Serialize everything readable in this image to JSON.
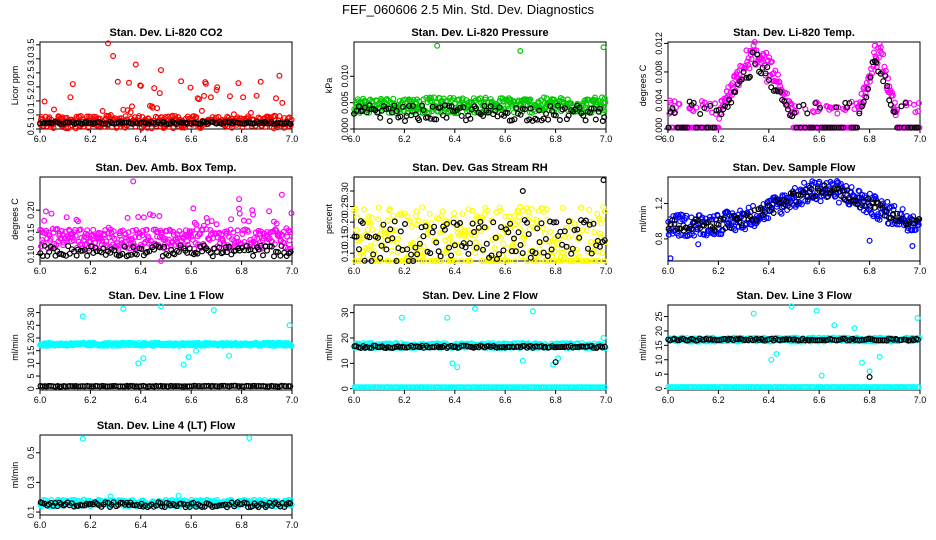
{
  "title": "FEF_060606  2.5 Min. Std. Dev. Diagnostics",
  "colors": {
    "black": "#000000",
    "red": "#ff0000",
    "green": "#00c800",
    "magenta": "#ff00ff",
    "yellow": "#ffff00",
    "blue": "#0000ff",
    "cyan": "#00ffff"
  },
  "chart_data": [
    {
      "type": "scatter",
      "title": "Stan. Dev. Li-820 CO2",
      "xlabel": "",
      "ylabel": "Licor ppm",
      "xlim": [
        6.0,
        7.0
      ],
      "ylim": [
        0.5,
        3.6
      ],
      "xticks": [
        "6.0",
        "6.2",
        "6.4",
        "6.6",
        "6.8",
        "7.0"
      ],
      "yticks": [
        "0.5",
        "1.0",
        "1.5",
        "2.0",
        "2.5",
        "3.0",
        "3.5"
      ],
      "series": [
        {
          "name": "main",
          "color": "red",
          "base": 0.75,
          "spread": 0.45,
          "extreme": 2.3,
          "fraction_extreme": 0.18,
          "outliers": [
            [
              6.27,
              3.55
            ],
            [
              6.29,
              3.1
            ],
            [
              6.48,
              2.6
            ],
            [
              6.95,
              2.4
            ],
            [
              6.56,
              2.2
            ],
            [
              6.13,
              2.1
            ],
            [
              6.38,
              2.8
            ]
          ]
        },
        {
          "name": "reference",
          "color": "black",
          "base": 0.72,
          "spread": 0.08,
          "fraction_extreme": 0.0,
          "outliers": []
        }
      ]
    },
    {
      "type": "scatter",
      "title": "Stan. Dev. Li-820 Pressure",
      "xlabel": "",
      "ylabel": "kPa",
      "xlim": [
        6.0,
        7.0
      ],
      "ylim": [
        0.0,
        0.0165
      ],
      "xticks": [
        "6.0",
        "6.2",
        "6.4",
        "6.6",
        "6.8",
        "7.0"
      ],
      "yticks": [
        "0.000",
        "0.005",
        "0.010"
      ],
      "series": [
        {
          "name": "main",
          "color": "green",
          "base": 0.0045,
          "spread": 0.003,
          "fraction_extreme": 0.0,
          "outliers": [
            [
              6.33,
              0.0158
            ],
            [
              6.66,
              0.0148
            ],
            [
              6.99,
              0.0155
            ]
          ]
        },
        {
          "name": "reference",
          "color": "black",
          "base": 0.003,
          "spread": 0.003,
          "fraction_extreme": 0.0,
          "outliers": []
        }
      ]
    },
    {
      "type": "scatter",
      "title": "Stan. Dev. Li-820 Temp.",
      "xlabel": "",
      "ylabel": "degrees C",
      "xlim": [
        6.0,
        7.0
      ],
      "ylim": [
        0.0,
        0.0122
      ],
      "xticks": [
        "6.0",
        "6.2",
        "6.4",
        "6.6",
        "6.8",
        "7.0"
      ],
      "yticks": [
        "0.000",
        "0.004",
        "0.008",
        "0.012"
      ],
      "series": [
        {
          "name": "main",
          "color": "magenta",
          "base": 0.003,
          "spread": 0.002,
          "fraction_extreme": 0.0,
          "outliers": []
        },
        {
          "name": "reference",
          "color": "black",
          "base": 0.0035,
          "spread": 0.001,
          "fraction_extreme": 0.0,
          "outliers": []
        }
      ]
    },
    {
      "type": "scatter",
      "title": "Stan. Dev. Amb. Box Temp.",
      "xlabel": "",
      "ylabel": "degrees C",
      "xlim": [
        6.0,
        7.0
      ],
      "ylim": [
        0.085,
        0.275
      ],
      "xticks": [
        "6.0",
        "6.2",
        "6.4",
        "6.6",
        "6.8",
        "7.0"
      ],
      "yticks": [
        "0.10",
        "0.15",
        "0.20"
      ],
      "series": [
        {
          "name": "main",
          "color": "magenta",
          "base": 0.135,
          "spread": 0.045,
          "extreme": 0.21,
          "fraction_extreme": 0.12,
          "outliers": [
            [
              6.37,
              0.265
            ],
            [
              6.48,
              0.08
            ],
            [
              6.96,
              0.235
            ],
            [
              6.79,
              0.225
            ]
          ]
        },
        {
          "name": "reference",
          "color": "black",
          "base": 0.108,
          "spread": 0.025,
          "fraction_extreme": 0.0,
          "outliers": []
        }
      ]
    },
    {
      "type": "scatter",
      "title": "Stan. Dev. Gas Stream RH",
      "xlabel": "",
      "ylabel": "percent",
      "xlim": [
        6.0,
        7.0
      ],
      "ylim": [
        0.075,
        0.345
      ],
      "xticks": [
        "6.0",
        "6.2",
        "6.4",
        "6.6",
        "6.8",
        "7.0"
      ],
      "yticks": [
        "0.10",
        "0.15",
        "0.20",
        "0.25",
        "0.30"
      ],
      "series": [
        {
          "name": "main",
          "color": "yellow",
          "base": 0.14,
          "spread": 0.22,
          "fraction_extreme": 0.0,
          "outliers": []
        },
        {
          "name": "reference",
          "color": "black",
          "base": 0.14,
          "spread": 0.14,
          "fraction_extreme": 0.0,
          "outliers": [
            [
              6.99,
              0.335
            ],
            [
              6.67,
              0.3
            ]
          ]
        }
      ]
    },
    {
      "type": "scatter",
      "title": "Stan. Dev. Sample Flow",
      "xlabel": "",
      "ylabel": "ml/min",
      "xlim": [
        6.0,
        7.0
      ],
      "ylim": [
        0.55,
        1.5
      ],
      "xticks": [
        "6.0",
        "6.2",
        "6.4",
        "6.6",
        "6.8",
        "7.0"
      ],
      "yticks": [
        "0.8",
        "1.2"
      ],
      "series": [
        {
          "name": "main",
          "color": "blue",
          "base": 0.0,
          "spread": 0.18,
          "fraction_extreme": 0.0,
          "outliers": [
            [
              6.01,
              0.58
            ],
            [
              6.97,
              0.72
            ],
            [
              6.12,
              0.74
            ],
            [
              6.8,
              0.78
            ]
          ]
        },
        {
          "name": "reference",
          "color": "black",
          "base": 0.0,
          "spread": 0.1,
          "fraction_extreme": 0.0,
          "outliers": []
        }
      ]
    },
    {
      "type": "scatter",
      "title": "Stan. Dev. Line 1 Flow",
      "xlabel": "",
      "ylabel": "ml/min",
      "xlim": [
        6.0,
        7.0
      ],
      "ylim": [
        -0.5,
        33
      ],
      "xticks": [
        "6.0",
        "6.2",
        "6.4",
        "6.6",
        "6.8",
        "7.0"
      ],
      "yticks": [
        "0",
        "5",
        "10",
        "15",
        "20",
        "25",
        "30"
      ],
      "series": [
        {
          "name": "main",
          "color": "cyan",
          "base": 17.5,
          "spread": 1.2,
          "fraction_extreme": 0.0,
          "outliers": [
            [
              6.17,
              28.5
            ],
            [
              6.33,
              31.5
            ],
            [
              6.48,
              32.5
            ],
            [
              6.99,
              25.0
            ],
            [
              6.69,
              31.0
            ],
            [
              6.39,
              10.0
            ],
            [
              6.41,
              12.0
            ],
            [
              6.57,
              9.5
            ],
            [
              6.59,
              12.5
            ],
            [
              6.75,
              13.0
            ],
            [
              6.62,
              15.0
            ]
          ]
        },
        {
          "name": "reference",
          "color": "black",
          "base": 1.0,
          "spread": 0.3,
          "fraction_extreme": 0.0,
          "outliers": []
        }
      ]
    },
    {
      "type": "scatter",
      "title": "Stan. Dev. Line 2 Flow",
      "xlabel": "",
      "ylabel": "ml/min",
      "xlim": [
        6.0,
        7.0
      ],
      "ylim": [
        -0.5,
        33
      ],
      "xticks": [
        "6.0",
        "6.2",
        "6.4",
        "6.6",
        "6.8",
        "7.0"
      ],
      "yticks": [
        "0",
        "10",
        "20",
        "30"
      ],
      "series": [
        {
          "name": "main",
          "color": "cyan",
          "base": 17.0,
          "spread": 2.0,
          "fraction_extreme": 0.0,
          "outliers": [
            [
              6.19,
              28.0
            ],
            [
              6.37,
              28.0
            ],
            [
              6.48,
              31.5
            ],
            [
              6.99,
              20.0
            ],
            [
              6.71,
              30.5
            ],
            [
              6.39,
              10.0
            ],
            [
              6.41,
              8.5
            ],
            [
              6.67,
              11.0
            ],
            [
              6.79,
              9.5
            ],
            [
              6.81,
              12.0
            ]
          ]
        },
        {
          "name": "reference",
          "color": "black",
          "base": 16.5,
          "spread": 0.9,
          "fraction_extreme": 0.0,
          "outliers": [
            [
              6.8,
              10.5
            ]
          ]
        },
        {
          "name": "baseline",
          "color": "cyan",
          "base": 0.6,
          "spread": 0.0,
          "fraction_extreme": 0.0,
          "outliers": []
        }
      ]
    },
    {
      "type": "scatter",
      "title": "Stan. Dev. Line 3 Flow",
      "xlabel": "",
      "ylabel": "ml/min",
      "xlim": [
        6.0,
        7.0
      ],
      "ylim": [
        -0.5,
        29
      ],
      "xticks": [
        "6.0",
        "6.2",
        "6.4",
        "6.6",
        "6.8",
        "7.0"
      ],
      "yticks": [
        "0",
        "5",
        "10",
        "15",
        "20",
        "25"
      ],
      "series": [
        {
          "name": "main",
          "color": "cyan",
          "base": 17.0,
          "spread": 1.4,
          "fraction_extreme": 0.0,
          "outliers": [
            [
              6.34,
              26.0
            ],
            [
              6.49,
              28.5
            ],
            [
              6.99,
              24.5
            ],
            [
              6.59,
              27.0
            ],
            [
              6.61,
              4.5
            ],
            [
              6.41,
              10.0
            ],
            [
              6.43,
              12.0
            ],
            [
              6.77,
              9.0
            ],
            [
              6.8,
              6.0
            ],
            [
              6.84,
              11.0
            ],
            [
              6.74,
              21.0
            ],
            [
              6.66,
              22.0
            ]
          ]
        },
        {
          "name": "reference",
          "color": "black",
          "base": 17.0,
          "spread": 0.7,
          "fraction_extreme": 0.0,
          "outliers": [
            [
              6.8,
              4.0
            ]
          ]
        },
        {
          "name": "baseline",
          "color": "cyan",
          "base": 0.5,
          "spread": 0.0,
          "fraction_extreme": 0.0,
          "outliers": []
        }
      ]
    },
    {
      "type": "scatter",
      "title": "Stan. Dev. Line 4 (LT) Flow",
      "xlabel": "",
      "ylabel": "ml/min",
      "xlim": [
        6.0,
        7.0
      ],
      "ylim": [
        0.08,
        0.62
      ],
      "xticks": [
        "6.0",
        "6.2",
        "6.4",
        "6.6",
        "6.8",
        "7.0"
      ],
      "yticks": [
        "0.1",
        "0.3",
        "0.5"
      ],
      "series": [
        {
          "name": "main",
          "color": "cyan",
          "base": 0.16,
          "spread": 0.045,
          "fraction_extreme": 0.0,
          "outliers": [
            [
              6.17,
              0.595
            ],
            [
              6.83,
              0.6
            ],
            [
              6.28,
              0.205
            ],
            [
              6.55,
              0.21
            ]
          ]
        },
        {
          "name": "reference",
          "color": "black",
          "base": 0.15,
          "spread": 0.035,
          "fraction_extreme": 0.0,
          "outliers": []
        }
      ]
    }
  ]
}
